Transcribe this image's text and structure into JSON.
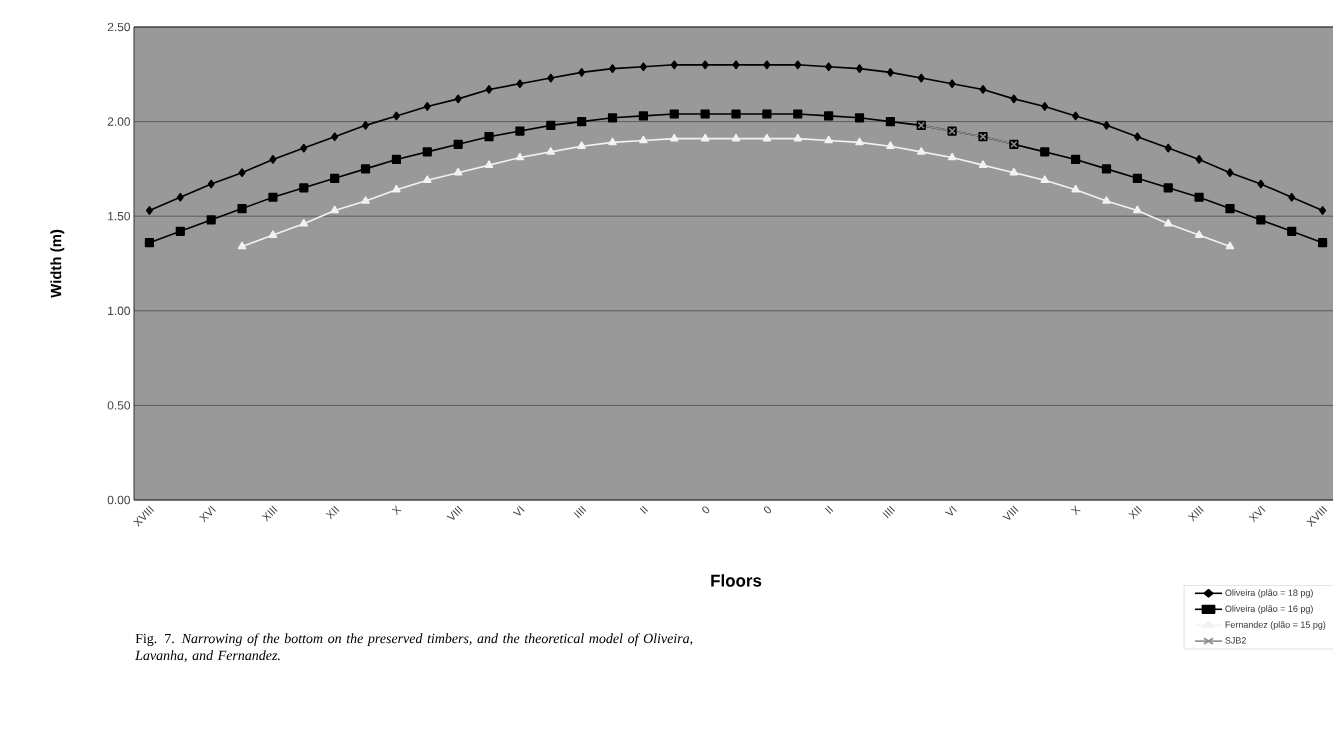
{
  "chart_data": {
    "type": "line",
    "xlabel": "Floors",
    "ylabel": "Width (m)",
    "categories": [
      "XVIII",
      null,
      "XVI",
      null,
      "XIII",
      null,
      "XII",
      null,
      "X",
      null,
      "VIII",
      null,
      "VI",
      null,
      "IIII",
      null,
      "II",
      null,
      "0",
      null,
      "0",
      null,
      "II",
      null,
      "IIII",
      null,
      "VI",
      null,
      "VIII",
      null,
      "X",
      null,
      "XII",
      null,
      "XIII",
      null,
      "XVI",
      null,
      "XVIII"
    ],
    "ylim": [
      0,
      2.5
    ],
    "yticks": [
      {
        "value": 0,
        "label": "0.00"
      },
      {
        "value": 0.5,
        "label": "0.50"
      },
      {
        "value": 1,
        "label": "1.00"
      },
      {
        "value": 1.5,
        "label": "1.50"
      },
      {
        "value": 2,
        "label": "2.00"
      },
      {
        "value": 2.5,
        "label": "2.50"
      }
    ],
    "grid": "y",
    "legend": "bottom right",
    "series": [
      {
        "name": "Oliveira (plão = 18 pg)",
        "color": "#000000",
        "marker": "diamond",
        "values": [
          1.53,
          1.6,
          1.67,
          1.73,
          1.8,
          1.86,
          1.92,
          1.98,
          2.03,
          2.08,
          2.12,
          2.17,
          2.2,
          2.23,
          2.26,
          2.28,
          2.29,
          2.3,
          2.3,
          2.3,
          2.3,
          2.3,
          2.29,
          2.28,
          2.26,
          2.23,
          2.2,
          2.17,
          2.12,
          2.08,
          2.03,
          1.98,
          1.92,
          1.86,
          1.8,
          1.73,
          1.67,
          1.6,
          1.53
        ]
      },
      {
        "name": "Oliveira (plão = 16 pg)",
        "color": "#000000",
        "marker": "square",
        "values": [
          1.36,
          1.42,
          1.48,
          1.54,
          1.6,
          1.65,
          1.7,
          1.75,
          1.8,
          1.84,
          1.88,
          1.92,
          1.95,
          1.98,
          2.0,
          2.02,
          2.03,
          2.04,
          2.04,
          2.04,
          2.04,
          2.04,
          2.03,
          2.02,
          2.0,
          1.98,
          1.95,
          1.92,
          1.88,
          1.84,
          1.8,
          1.75,
          1.7,
          1.65,
          1.6,
          1.54,
          1.48,
          1.42,
          1.36
        ]
      },
      {
        "name": "Fernandez (plão = 15 pg)",
        "color": "#f2f2f2",
        "marker": "triangle",
        "values": [
          null,
          null,
          null,
          1.34,
          1.4,
          1.46,
          1.53,
          1.58,
          1.64,
          1.69,
          1.73,
          1.77,
          1.81,
          1.84,
          1.87,
          1.89,
          1.9,
          1.91,
          1.91,
          1.91,
          1.91,
          1.91,
          1.9,
          1.89,
          1.87,
          1.84,
          1.81,
          1.77,
          1.73,
          1.69,
          1.64,
          1.58,
          1.53,
          1.46,
          1.4,
          1.34,
          null,
          null,
          null
        ]
      },
      {
        "name": "SJB2",
        "color": "#8c8c8c",
        "marker": "cross",
        "values": [
          null,
          null,
          null,
          null,
          null,
          null,
          null,
          null,
          null,
          null,
          null,
          null,
          null,
          null,
          null,
          null,
          null,
          null,
          null,
          null,
          null,
          null,
          null,
          null,
          null,
          1.98,
          1.95,
          1.92,
          1.88,
          null,
          null,
          null,
          null,
          null,
          null,
          null,
          null,
          null,
          null
        ]
      }
    ],
    "annotations": [
      "Fig. 7. *Narrowing of the bottom on the preserved timbers, and the theoretical model of Oliveira, Lavanha, and Fernandez.*"
    ]
  }
}
